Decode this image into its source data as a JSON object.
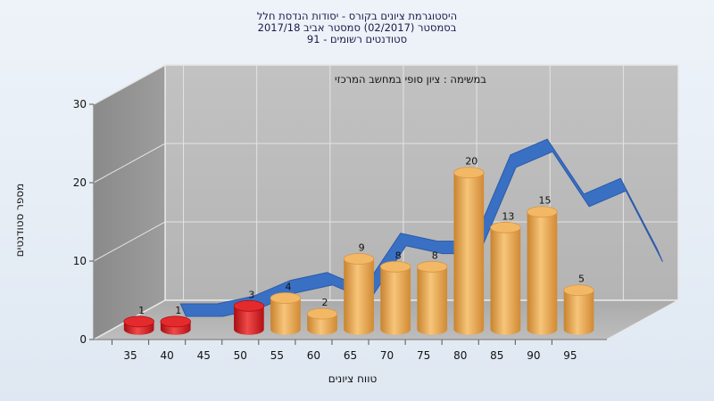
{
  "chart_data": {
    "type": "bar",
    "title_lines": [
      "היסטוגרמת ציונים בקורס - יסודות הנדסת חלל",
      "בסמסטר  (02/2017)  סמסטר אביב 2017/18",
      "סטודנטים רשומים - 91"
    ],
    "subtitle": "במשימה : ציון סופי במחשב המרכזי",
    "xlabel": "טווח ציונים",
    "ylabel": "מספר סטודנטים",
    "categories": [
      "35",
      "40",
      "45",
      "50",
      "55",
      "60",
      "65",
      "70",
      "75",
      "80",
      "85",
      "90",
      "95"
    ],
    "values": [
      1,
      1,
      0,
      3,
      4,
      2,
      9,
      8,
      8,
      20,
      13,
      15,
      5
    ],
    "value_labels": [
      "1",
      "1",
      "",
      "3",
      "4",
      "2",
      "9",
      "8",
      "8",
      "20",
      "13",
      "15",
      "5"
    ],
    "bar_colors": [
      "#d8141a",
      "#d8141a",
      "#d8141a",
      "#d8141a",
      "#e8a448",
      "#e8a448",
      "#e8a448",
      "#e8a448",
      "#e8a448",
      "#e8a448",
      "#e8a448",
      "#e8a448",
      "#e8a448"
    ],
    "curve": [
      1,
      1,
      2,
      4,
      5,
      3,
      10,
      9,
      9,
      20,
      22,
      15,
      17,
      8
    ],
    "curve_color": "#3a70c4",
    "ylim": [
      0,
      30
    ],
    "yticks": [
      "0",
      "10",
      "20",
      "30"
    ],
    "grid": true,
    "legend": "none"
  }
}
